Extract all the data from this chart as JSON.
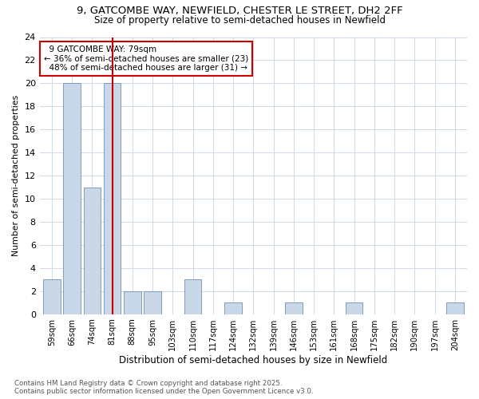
{
  "title_line1": "9, GATCOMBE WAY, NEWFIELD, CHESTER LE STREET, DH2 2FF",
  "title_line2": "Size of property relative to semi-detached houses in Newfield",
  "categories": [
    "59sqm",
    "66sqm",
    "74sqm",
    "81sqm",
    "88sqm",
    "95sqm",
    "103sqm",
    "110sqm",
    "117sqm",
    "124sqm",
    "132sqm",
    "139sqm",
    "146sqm",
    "153sqm",
    "161sqm",
    "168sqm",
    "175sqm",
    "182sqm",
    "190sqm",
    "197sqm",
    "204sqm"
  ],
  "values": [
    3,
    20,
    11,
    20,
    2,
    2,
    0,
    3,
    0,
    1,
    0,
    0,
    1,
    0,
    0,
    1,
    0,
    0,
    0,
    0,
    1
  ],
  "bar_color": "#c8d8e8",
  "bar_edgecolor": "#7090b0",
  "highlight_index": 3,
  "highlight_color": "#cc0000",
  "xlabel": "Distribution of semi-detached houses by size in Newfield",
  "ylabel": "Number of semi-detached properties",
  "ylim": [
    0,
    24
  ],
  "yticks": [
    0,
    2,
    4,
    6,
    8,
    10,
    12,
    14,
    16,
    18,
    20,
    22,
    24
  ],
  "annotation_text": "  9 GATCOMBE WAY: 79sqm\n← 36% of semi-detached houses are smaller (23)\n  48% of semi-detached houses are larger (31) →",
  "annotation_box_color": "#cc0000",
  "footnote_line1": "Contains HM Land Registry data © Crown copyright and database right 2025.",
  "footnote_line2": "Contains public sector information licensed under the Open Government Licence v3.0.",
  "background_color": "#ffffff",
  "grid_color": "#c8d4e0"
}
